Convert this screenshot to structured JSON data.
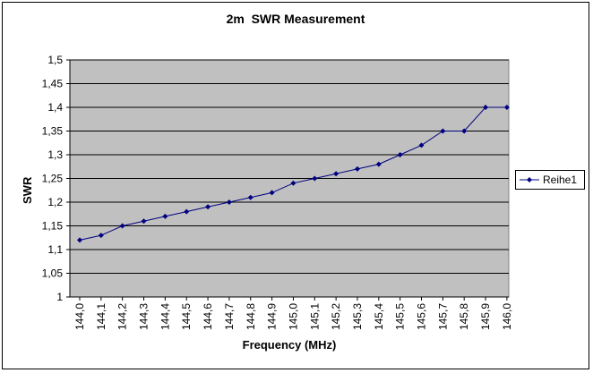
{
  "chart_data": {
    "type": "line",
    "title": "2m  SWR Measurement",
    "xlabel": "Frequency (MHz)",
    "ylabel": "SWR",
    "categories": [
      "144,0",
      "144,1",
      "144,2",
      "144,3",
      "144,4",
      "144,5",
      "144,6",
      "144,7",
      "144,8",
      "144,9",
      "145,0",
      "145,1",
      "145,2",
      "145,3",
      "145,4",
      "145,5",
      "145,6",
      "145,7",
      "145,8",
      "145,9",
      "146,0"
    ],
    "series": [
      {
        "name": "Reihe1",
        "values": [
          1.12,
          1.13,
          1.15,
          1.16,
          1.17,
          1.18,
          1.19,
          1.2,
          1.21,
          1.22,
          1.24,
          1.25,
          1.26,
          1.27,
          1.28,
          1.3,
          1.32,
          1.35,
          1.35,
          1.4,
          1.4
        ]
      }
    ],
    "ylim": [
      1,
      1.5
    ],
    "yticks": [
      "1",
      "1,05",
      "1,1",
      "1,15",
      "1,2",
      "1,25",
      "1,3",
      "1,35",
      "1,4",
      "1,45",
      "1,5"
    ],
    "grid": true,
    "legend_position": "right",
    "colors": {
      "series": "#000080",
      "plot_background": "#c0c0c0",
      "gridline": "#000000"
    }
  }
}
